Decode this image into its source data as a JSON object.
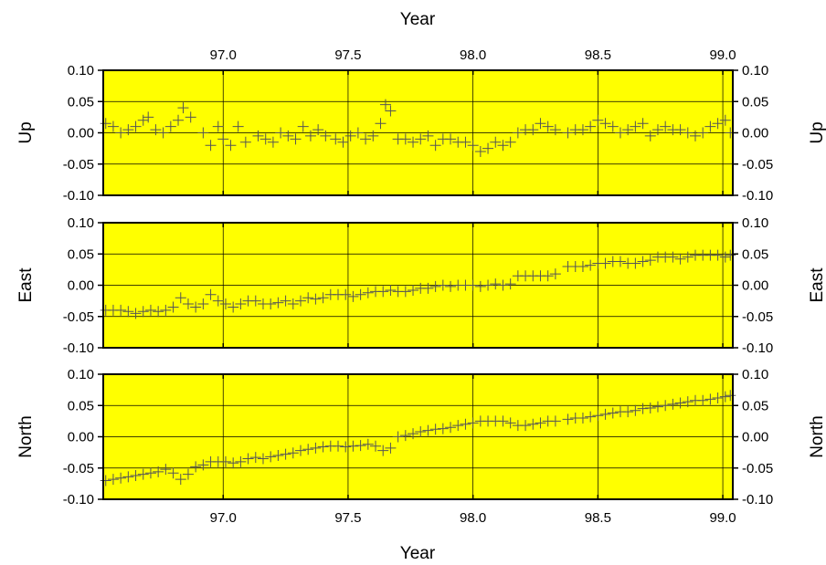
{
  "chart_data": {
    "type": "scatter",
    "top_xlabel": "Year",
    "bottom_xlabel": "Year",
    "xlim": [
      96.52,
      99.04
    ],
    "xticks": [
      "97.0",
      "97.5",
      "98.0",
      "98.5",
      "99.0"
    ],
    "yticks": [
      "0.10",
      "0.05",
      "0.00",
      "-0.05",
      "-0.10"
    ],
    "ylim": [
      -0.1,
      0.1
    ],
    "grid": true,
    "background_color": "#ffff00",
    "marker": "plus",
    "marker_color": "#555555",
    "panels": [
      {
        "name": "up",
        "ylabel": "Up",
        "x": [
          96.53,
          96.56,
          96.59,
          96.62,
          96.65,
          96.68,
          96.7,
          96.73,
          96.76,
          96.79,
          96.82,
          96.84,
          96.87,
          96.92,
          96.95,
          96.98,
          97.0,
          97.03,
          97.06,
          97.09,
          97.14,
          97.17,
          97.2,
          97.23,
          97.26,
          97.29,
          97.32,
          97.35,
          97.38,
          97.41,
          97.45,
          97.48,
          97.51,
          97.54,
          97.57,
          97.6,
          97.63,
          97.65,
          97.67,
          97.7,
          97.73,
          97.76,
          97.79,
          97.82,
          97.85,
          97.88,
          97.91,
          97.94,
          97.97,
          98.0,
          98.03,
          98.06,
          98.09,
          98.12,
          98.15,
          98.18,
          98.21,
          98.24,
          98.27,
          98.3,
          98.33,
          98.38,
          98.41,
          98.44,
          98.47,
          98.5,
          98.53,
          98.56,
          98.59,
          98.62,
          98.65,
          98.68,
          98.71,
          98.74,
          98.77,
          98.8,
          98.83,
          98.86,
          98.89,
          98.92,
          98.95,
          98.98,
          99.01,
          99.03
        ],
        "y": [
          0.015,
          0.01,
          0.0,
          0.005,
          0.01,
          0.02,
          0.025,
          0.005,
          0.0,
          0.01,
          0.02,
          0.04,
          0.025,
          0.0,
          -0.02,
          0.01,
          -0.01,
          -0.02,
          0.01,
          -0.015,
          -0.005,
          -0.01,
          -0.015,
          0.0,
          -0.005,
          -0.01,
          0.01,
          -0.005,
          0.005,
          -0.005,
          -0.01,
          -0.015,
          -0.005,
          0.0,
          -0.01,
          -0.005,
          0.015,
          0.045,
          0.035,
          -0.01,
          -0.01,
          -0.015,
          -0.01,
          -0.005,
          -0.02,
          -0.01,
          -0.01,
          -0.015,
          -0.015,
          -0.02,
          -0.03,
          -0.025,
          -0.015,
          -0.02,
          -0.015,
          0.0,
          0.005,
          0.005,
          0.015,
          0.01,
          0.005,
          0.0,
          0.005,
          0.005,
          0.01,
          0.02,
          0.015,
          0.01,
          0.0,
          0.005,
          0.01,
          0.015,
          -0.005,
          0.005,
          0.01,
          0.005,
          0.005,
          0.0,
          -0.005,
          0.0,
          0.01,
          0.015,
          0.02,
          0.0
        ]
      },
      {
        "name": "east",
        "ylabel": "East",
        "x": [
          96.53,
          96.56,
          96.59,
          96.62,
          96.65,
          96.68,
          96.71,
          96.74,
          96.77,
          96.8,
          96.83,
          96.86,
          96.89,
          96.92,
          96.95,
          96.98,
          97.01,
          97.04,
          97.07,
          97.1,
          97.13,
          97.16,
          97.19,
          97.22,
          97.25,
          97.28,
          97.31,
          97.34,
          97.37,
          97.4,
          97.43,
          97.46,
          97.49,
          97.52,
          97.55,
          97.58,
          97.61,
          97.64,
          97.67,
          97.7,
          97.73,
          97.76,
          97.79,
          97.82,
          97.85,
          97.88,
          97.91,
          97.94,
          97.97,
          98.0,
          98.03,
          98.06,
          98.09,
          98.12,
          98.15,
          98.18,
          98.21,
          98.24,
          98.27,
          98.3,
          98.33,
          98.38,
          98.41,
          98.44,
          98.47,
          98.5,
          98.53,
          98.56,
          98.59,
          98.62,
          98.65,
          98.68,
          98.71,
          98.74,
          98.77,
          98.8,
          98.83,
          98.86,
          98.89,
          98.92,
          98.95,
          98.98,
          99.01,
          99.03
        ],
        "y": [
          -0.04,
          -0.04,
          -0.04,
          -0.042,
          -0.045,
          -0.042,
          -0.04,
          -0.042,
          -0.04,
          -0.035,
          -0.02,
          -0.03,
          -0.035,
          -0.03,
          -0.015,
          -0.025,
          -0.03,
          -0.035,
          -0.03,
          -0.025,
          -0.025,
          -0.03,
          -0.03,
          -0.028,
          -0.025,
          -0.03,
          -0.025,
          -0.02,
          -0.022,
          -0.02,
          -0.015,
          -0.015,
          -0.015,
          -0.018,
          -0.015,
          -0.012,
          -0.01,
          -0.01,
          -0.008,
          -0.01,
          -0.01,
          -0.008,
          -0.005,
          -0.005,
          -0.002,
          0.0,
          -0.002,
          0.0,
          0.0,
          0.0,
          -0.002,
          0.0,
          0.002,
          0.0,
          0.002,
          0.015,
          0.015,
          0.015,
          0.015,
          0.015,
          0.018,
          0.03,
          0.03,
          0.03,
          0.032,
          0.035,
          0.035,
          0.038,
          0.038,
          0.035,
          0.035,
          0.038,
          0.04,
          0.045,
          0.045,
          0.045,
          0.042,
          0.045,
          0.048,
          0.048,
          0.048,
          0.048,
          0.045,
          0.048
        ]
      },
      {
        "name": "north",
        "ylabel": "North",
        "x": [
          96.53,
          96.56,
          96.59,
          96.62,
          96.65,
          96.68,
          96.71,
          96.74,
          96.77,
          96.8,
          96.83,
          96.86,
          96.89,
          96.92,
          96.95,
          96.98,
          97.01,
          97.04,
          97.07,
          97.1,
          97.13,
          97.16,
          97.19,
          97.22,
          97.25,
          97.28,
          97.31,
          97.34,
          97.37,
          97.4,
          97.43,
          97.46,
          97.49,
          97.52,
          97.55,
          97.58,
          97.61,
          97.64,
          97.67,
          97.7,
          97.73,
          97.76,
          97.79,
          97.82,
          97.85,
          97.88,
          97.91,
          97.94,
          97.97,
          98.0,
          98.03,
          98.06,
          98.09,
          98.12,
          98.15,
          98.18,
          98.21,
          98.24,
          98.27,
          98.3,
          98.33,
          98.38,
          98.41,
          98.44,
          98.47,
          98.5,
          98.53,
          98.56,
          98.59,
          98.62,
          98.65,
          98.68,
          98.71,
          98.74,
          98.77,
          98.8,
          98.83,
          98.86,
          98.89,
          98.92,
          98.95,
          98.98,
          99.01,
          99.03
        ],
        "y": [
          -0.07,
          -0.068,
          -0.066,
          -0.064,
          -0.062,
          -0.06,
          -0.058,
          -0.056,
          -0.052,
          -0.058,
          -0.068,
          -0.06,
          -0.048,
          -0.045,
          -0.04,
          -0.04,
          -0.04,
          -0.042,
          -0.04,
          -0.035,
          -0.033,
          -0.035,
          -0.032,
          -0.03,
          -0.028,
          -0.026,
          -0.022,
          -0.02,
          -0.018,
          -0.016,
          -0.015,
          -0.015,
          -0.016,
          -0.015,
          -0.014,
          -0.012,
          -0.015,
          -0.022,
          -0.018,
          0.0,
          0.002,
          0.005,
          0.008,
          0.01,
          0.012,
          0.013,
          0.015,
          0.018,
          0.02,
          0.022,
          0.025,
          0.025,
          0.025,
          0.025,
          0.022,
          0.018,
          0.018,
          0.02,
          0.022,
          0.025,
          0.025,
          0.028,
          0.03,
          0.03,
          0.032,
          0.034,
          0.036,
          0.038,
          0.04,
          0.04,
          0.042,
          0.045,
          0.046,
          0.048,
          0.05,
          0.052,
          0.054,
          0.056,
          0.058,
          0.058,
          0.06,
          0.062,
          0.064,
          0.066
        ]
      }
    ]
  }
}
